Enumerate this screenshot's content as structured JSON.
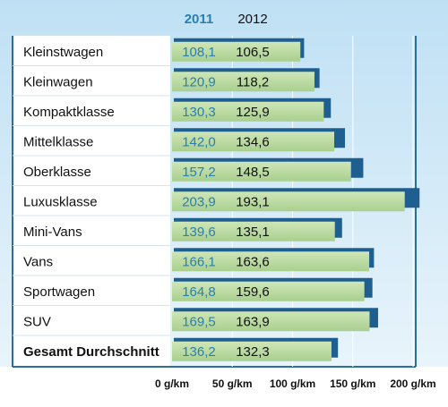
{
  "chart_data": {
    "type": "bar",
    "title": "",
    "xlabel": "",
    "ylabel": "",
    "orientation": "horizontal",
    "unit": "g/km",
    "xlim": [
      0,
      200
    ],
    "grid": true,
    "legend_position": "top",
    "categories": [
      "Kleinstwagen",
      "Kleinwagen",
      "Kompaktklasse",
      "Mittelklasse",
      "Oberklasse",
      "Luxusklasse",
      "Mini-Vans",
      "Vans",
      "Sportwagen",
      "SUV",
      "Gesamt Durchschnitt"
    ],
    "bold_categories": [
      "Gesamt Durchschnitt"
    ],
    "series": [
      {
        "name": "2011",
        "color": "#1f5f8f",
        "values": [
          108.1,
          120.9,
          130.3,
          142.0,
          157.2,
          203.9,
          139.6,
          166.1,
          164.8,
          169.5,
          136.2
        ],
        "labels": [
          "108,1",
          "120,9",
          "130,3",
          "142,0",
          "157,2",
          "203,9",
          "139,6",
          "166,1",
          "164,8",
          "169,5",
          "136,2"
        ]
      },
      {
        "name": "2012",
        "color": "#bcdba0",
        "values": [
          106.5,
          118.2,
          125.9,
          134.6,
          148.5,
          193.1,
          135.1,
          163.6,
          159.6,
          163.9,
          132.3
        ],
        "labels": [
          "106,5",
          "118,2",
          "125,9",
          "134,6",
          "148,5",
          "193,1",
          "135,1",
          "163,6",
          "159,6",
          "163,9",
          "132,3"
        ]
      }
    ],
    "x_ticks": [
      {
        "value": 0,
        "label": "0 g/km"
      },
      {
        "value": 50,
        "label": "50 g/km"
      },
      {
        "value": 100,
        "label": "100 g/km"
      },
      {
        "value": 150,
        "label": "150 g/km"
      },
      {
        "value": 200,
        "label": "200 g/km"
      }
    ],
    "colors": {
      "frame": "#2a6f99",
      "legend_2011": "#2a7fb0",
      "legend_2012": "#111111",
      "label_panel": "#ffffff",
      "plot_bg_top": "#bfe0f4",
      "plot_bg_bottom": "#e8f4fb",
      "grid": "#ffffff",
      "text": "#111111"
    }
  }
}
